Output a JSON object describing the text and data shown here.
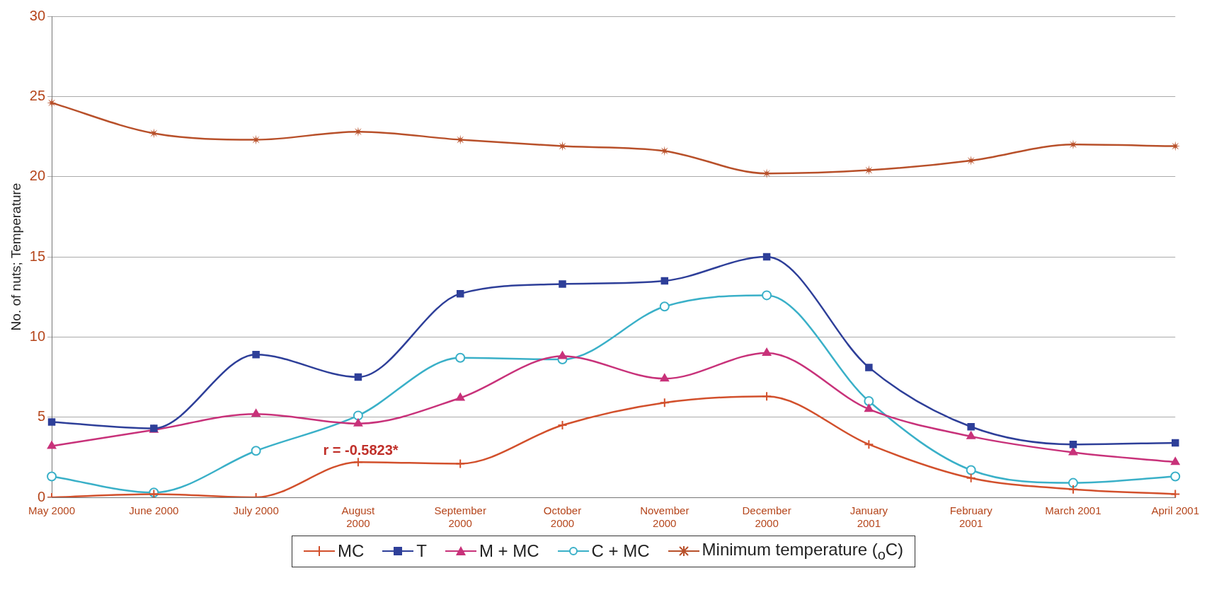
{
  "chart_data": {
    "type": "line",
    "ylabel": "No. of nuts; Temperature",
    "categories": [
      "May 2000",
      "June 2000",
      "July 2000",
      "August 2000",
      "September 2000",
      "October 2000",
      "November 2000",
      "December 2000",
      "January 2001",
      "February 2001",
      "March 2001",
      "April 2001"
    ],
    "series": [
      {
        "name": "MC",
        "color": "#d2502c",
        "marker": "cross",
        "values": [
          0,
          0.2,
          0,
          2.2,
          2.1,
          4.5,
          5.9,
          6.3,
          3.3,
          1.2,
          0.5,
          0.2
        ]
      },
      {
        "name": "T",
        "color": "#2e3f99",
        "marker": "square",
        "values": [
          4.7,
          4.3,
          8.9,
          7.5,
          12.7,
          13.3,
          13.5,
          15.0,
          8.1,
          4.4,
          3.3,
          3.4
        ]
      },
      {
        "name": "M + MC",
        "color": "#c8327a",
        "marker": "triangle",
        "values": [
          3.2,
          4.2,
          5.2,
          4.6,
          6.2,
          8.8,
          7.4,
          9.0,
          5.5,
          3.8,
          2.8,
          2.2
        ]
      },
      {
        "name": "C + MC",
        "color": "#3ab0c8",
        "marker": "circle",
        "values": [
          1.3,
          0.3,
          2.9,
          5.1,
          8.7,
          8.6,
          11.9,
          12.6,
          6.0,
          1.7,
          0.9,
          1.3
        ]
      },
      {
        "name": "Minimum temperature ($_{o}$C)",
        "color": "#b8502a",
        "marker": "star",
        "values": [
          24.6,
          22.7,
          22.3,
          22.8,
          22.3,
          21.9,
          21.6,
          20.2,
          20.4,
          21.0,
          22.0,
          21.9
        ]
      }
    ],
    "ylim": [
      0,
      30
    ],
    "yticks": [
      0,
      5,
      10,
      15,
      20,
      25,
      30
    ],
    "grid": "y",
    "legend": "bottom",
    "line_style": "solid",
    "annotations": [
      "r = -0.5823*"
    ]
  }
}
